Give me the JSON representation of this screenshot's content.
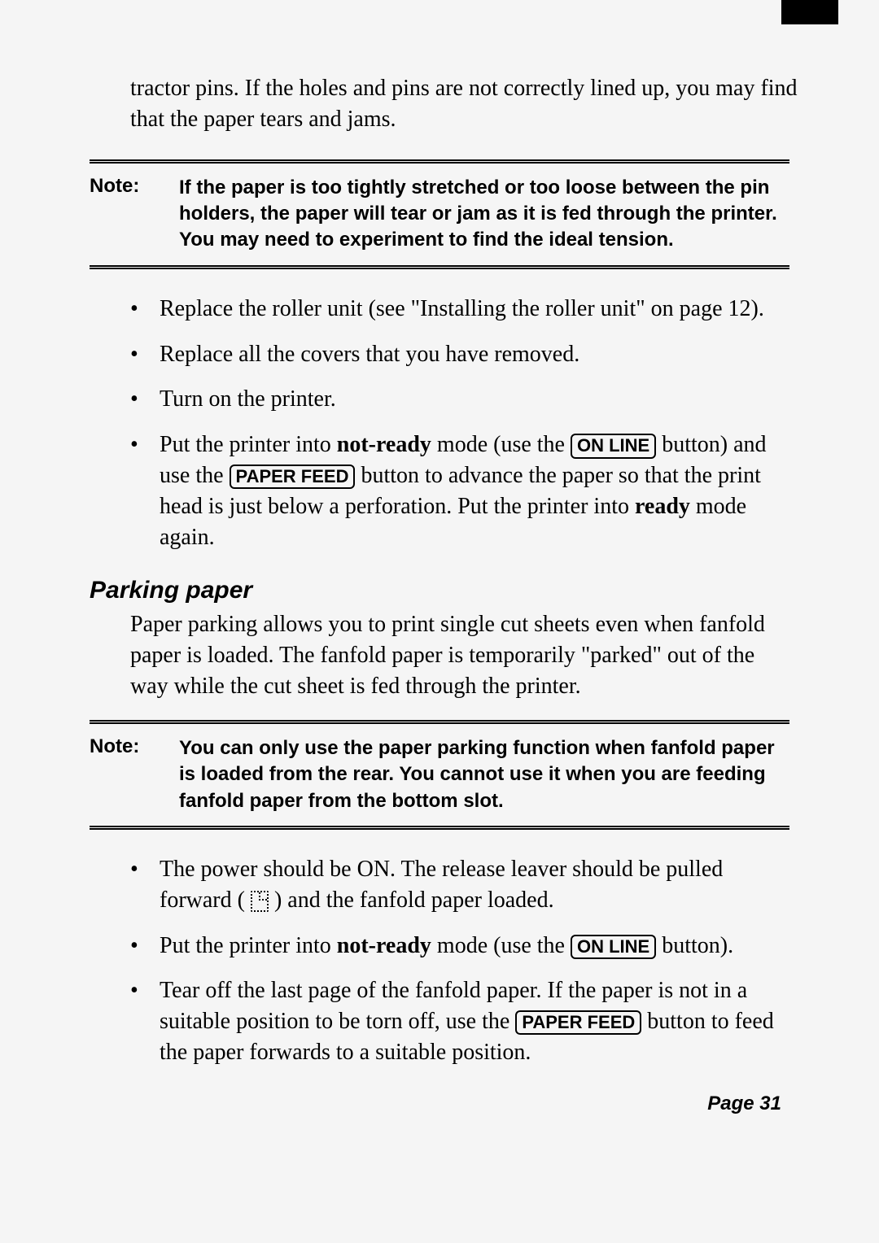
{
  "intro": "tractor pins. If the holes and pins are not correctly lined up, you may find that the paper tears and jams.",
  "note1": {
    "label": "Note:",
    "text": "If the paper is too tightly stretched or too loose between the pin holders, the paper will tear or jam as it is fed through the printer. You may need to experiment to find the ideal tension."
  },
  "list1": {
    "i1": "Replace the roller unit (see \"Installing the roller unit\" on page 12).",
    "i2": "Replace all the covers that you have removed.",
    "i3": "Turn on the printer.",
    "i4a": "Put the printer into ",
    "i4b": "not-ready",
    "i4c": " mode (use the ",
    "i4d": "ON LINE",
    "i4e": " button) and use the ",
    "i4f": "PAPER FEED",
    "i4g": " button to advance the paper so that the print head is just below a perforation. Put the printer into ",
    "i4h": "ready",
    "i4i": " mode again."
  },
  "heading": "Parking paper",
  "para2": "Paper parking allows you to print single cut sheets even when fanfold paper is loaded. The fanfold paper is temporarily \"parked\" out of the way while the cut sheet is fed through the printer.",
  "note2": {
    "label": "Note:",
    "text": "You can only use the paper parking function when fanfold paper is loaded from the rear. You cannot use it when you are feeding fanfold paper from the bottom slot."
  },
  "list2": {
    "i1a": "The power should be ON. The release leaver should be pulled forward ( ",
    "i1b": " ) and the fanfold paper loaded.",
    "i2a": "Put the printer into ",
    "i2b": "not-ready",
    "i2c": " mode (use the ",
    "i2d": "ON LINE",
    "i2e": " button).",
    "i3a": "Tear off the last page of the fanfold paper. If the paper is not in a suitable position to be torn off, use the ",
    "i3b": "PAPER FEED",
    "i3c": " button to feed the paper forwards to a suitable position."
  },
  "pagenum": "Page 31"
}
